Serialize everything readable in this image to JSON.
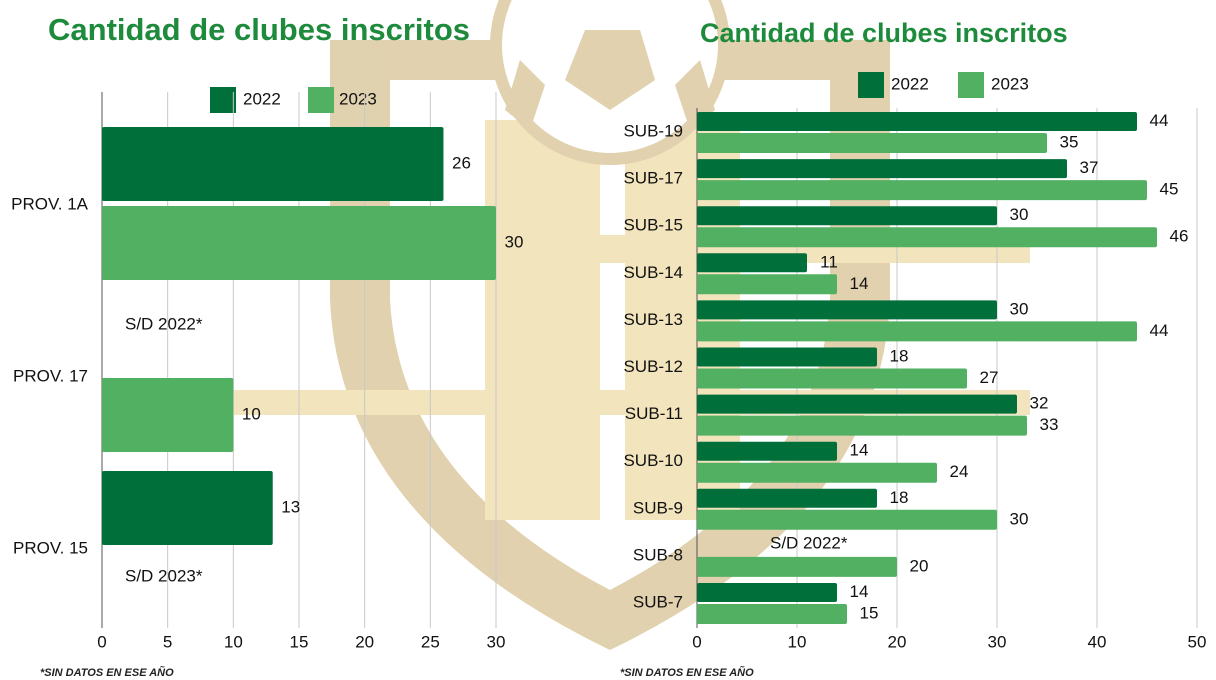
{
  "chart_data": [
    {
      "type": "barh",
      "title": "Cantidad de clubes inscritos",
      "categories": [
        "PROV. 1A",
        "PROV. 17",
        "PROV. 15"
      ],
      "series": [
        {
          "name": "2022",
          "color": "#006f3a",
          "values": [
            26,
            null,
            13
          ]
        },
        {
          "name": "2023",
          "color": "#52b062",
          "values": [
            30,
            10,
            null
          ]
        }
      ],
      "annotations": [
        "S/D 2022*",
        "S/D 2023*"
      ],
      "footnote": "*SIN DATOS EN ESE AÑO",
      "xlim": [
        0,
        30
      ],
      "xticks": [
        0,
        5,
        10,
        15,
        20,
        25,
        30
      ],
      "grid": true
    },
    {
      "type": "barh",
      "title": "Cantidad de clubes inscritos",
      "categories": [
        "SUB-19",
        "SUB-17",
        "SUB-15",
        "SUB-14",
        "SUB-13",
        "SUB-12",
        "SUB-11",
        "SUB-10",
        "SUB-9",
        "SUB-8",
        "SUB-7"
      ],
      "series": [
        {
          "name": "2022",
          "color": "#006f3a",
          "values": [
            44,
            37,
            30,
            11,
            30,
            18,
            32,
            14,
            18,
            null,
            14
          ]
        },
        {
          "name": "2023",
          "color": "#52b062",
          "values": [
            35,
            45,
            46,
            14,
            44,
            27,
            33,
            24,
            30,
            20,
            15
          ]
        }
      ],
      "annotations": [
        "S/D 2022*"
      ],
      "footnote": "*SIN DATOS EN ESE AÑO",
      "xlim": [
        0,
        50
      ],
      "xticks": [
        0,
        10,
        20,
        30,
        40,
        50
      ],
      "grid": true
    }
  ]
}
